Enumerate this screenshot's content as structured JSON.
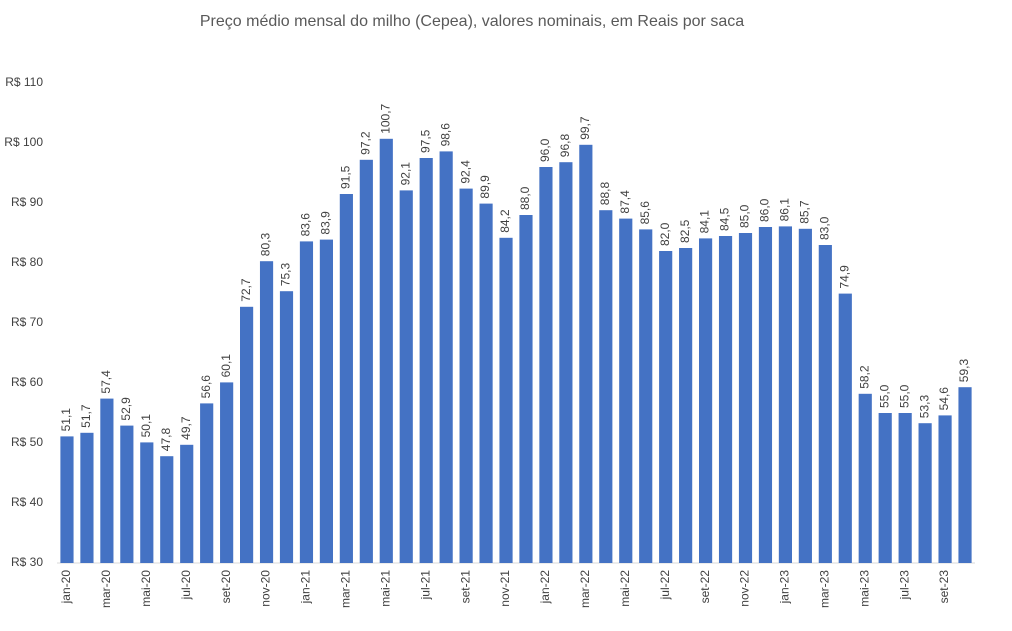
{
  "chart_data": {
    "type": "bar",
    "title": "Preço médio mensal do milho (Cepea), valores nominais, em Reais por saca",
    "categories": [
      "jan-20",
      null,
      "mar-20",
      null,
      "mai-20",
      null,
      "jul-20",
      null,
      "set-20",
      null,
      "nov-20",
      null,
      "jan-21",
      null,
      "mar-21",
      null,
      "mai-21",
      null,
      "jul-21",
      null,
      "set-21",
      null,
      "nov-21",
      null,
      "jan-22",
      null,
      "mar-22",
      null,
      "mai-22",
      null,
      "jul-22",
      null,
      "set-22",
      null,
      "nov-22",
      null,
      "jan-23",
      null,
      "mar-23",
      null,
      "mai-23",
      null,
      "jul-23",
      null,
      "set-23",
      null
    ],
    "values": [
      51.1,
      51.7,
      57.4,
      52.9,
      50.1,
      47.8,
      49.7,
      56.6,
      60.1,
      72.7,
      80.3,
      75.3,
      83.6,
      83.9,
      91.5,
      97.2,
      100.7,
      92.1,
      97.5,
      98.6,
      92.4,
      89.9,
      84.2,
      88.0,
      96.0,
      96.8,
      99.7,
      88.8,
      87.4,
      85.6,
      82.0,
      82.5,
      84.1,
      84.5,
      85.0,
      86.0,
      86.1,
      85.7,
      83.0,
      74.9,
      58.2,
      55.0,
      55.0,
      53.3,
      54.6,
      59.3
    ],
    "value_labels": [
      "51,1",
      "51,7",
      "57,4",
      "52,9",
      "50,1",
      "47,8",
      "49,7",
      "56,6",
      "60,1",
      "72,7",
      "80,3",
      "75,3",
      "83,6",
      "83,9",
      "91,5",
      "97,2",
      "100,7",
      "92,1",
      "97,5",
      "98,6",
      "92,4",
      "89,9",
      "84,2",
      "88,0",
      "96,0",
      "96,8",
      "99,7",
      "88,8",
      "87,4",
      "85,6",
      "82,0",
      "82,5",
      "84,1",
      "84,5",
      "85,0",
      "86,0",
      "86,1",
      "85,7",
      "83,0",
      "74,9",
      "58,2",
      "55,0",
      "55,0",
      "53,3",
      "54,6",
      "59,3"
    ],
    "color": "#4472c4",
    "ylim": [
      30,
      110
    ],
    "yticks": [
      {
        "value": 30,
        "label": "R$ 30"
      },
      {
        "value": 40,
        "label": "R$ 40"
      },
      {
        "value": 50,
        "label": "R$ 50"
      },
      {
        "value": 60,
        "label": "R$ 60"
      },
      {
        "value": 70,
        "label": "R$ 70"
      },
      {
        "value": 80,
        "label": "R$ 80"
      },
      {
        "value": 90,
        "label": "R$ 90"
      },
      {
        "value": 100,
        "label": "R$ 100"
      },
      {
        "value": 110,
        "label": "R$ 110"
      }
    ],
    "grid": false
  }
}
